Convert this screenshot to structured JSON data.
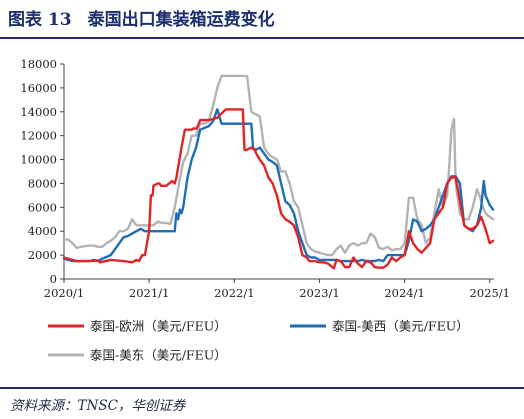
{
  "figure": {
    "label": "图表 13",
    "title": "泰国出口集装箱运费变化",
    "source": "资料来源：TNSC，华创证券"
  },
  "colors": {
    "europe": "#e02427",
    "uswest": "#1f6db5",
    "useast": "#b3b3b3",
    "brand": "#1a2f6b"
  },
  "chart_data": {
    "type": "line",
    "title": "",
    "xlabel": "",
    "ylabel": "",
    "ylim": [
      0,
      18000
    ],
    "yticks": [
      0,
      2000,
      4000,
      6000,
      8000,
      10000,
      12000,
      14000,
      16000,
      18000
    ],
    "xlim": [
      2020.0,
      2025.05
    ],
    "xticks": [
      {
        "value": 2020.0,
        "label": "2020/1"
      },
      {
        "value": 2021.0,
        "label": "2021/1"
      },
      {
        "value": 2022.0,
        "label": "2022/1"
      },
      {
        "value": 2023.0,
        "label": "2023/1"
      },
      {
        "value": 2024.0,
        "label": "2024/1"
      },
      {
        "value": 2025.0,
        "label": "2025/1"
      }
    ],
    "grid": false,
    "legend_position": "bottom",
    "series": [
      {
        "key": "europe",
        "name": "泰国-欧洲（美元/FEU）",
        "x": [
          2020.0,
          2020.15,
          2020.3,
          2020.4,
          2020.42,
          2020.55,
          2020.7,
          2020.8,
          2020.85,
          2020.88,
          2020.92,
          2020.95,
          2021.0,
          2021.02,
          2021.04,
          2021.05,
          2021.1,
          2021.12,
          2021.14,
          2021.2,
          2021.27,
          2021.3,
          2021.32,
          2021.38,
          2021.42,
          2021.44,
          2021.5,
          2021.52,
          2021.56,
          2021.6,
          2021.7,
          2021.8,
          2021.84,
          2021.9,
          2021.95,
          2022.0,
          2022.05,
          2022.1,
          2022.12,
          2022.14,
          2022.2,
          2022.24,
          2022.26,
          2022.3,
          2022.35,
          2022.4,
          2022.45,
          2022.5,
          2022.55,
          2022.6,
          2022.65,
          2022.7,
          2022.75,
          2022.8,
          2022.85,
          2022.88,
          2022.92,
          2022.95,
          2023.0,
          2023.05,
          2023.1,
          2023.15,
          2023.17,
          2023.2,
          2023.25,
          2023.3,
          2023.35,
          2023.4,
          2023.45,
          2023.5,
          2023.55,
          2023.6,
          2023.65,
          2023.7,
          2023.75,
          2023.8,
          2023.85,
          2023.9,
          2023.95,
          2024.0,
          2024.05,
          2024.1,
          2024.15,
          2024.2,
          2024.25,
          2024.3,
          2024.35,
          2024.4,
          2024.45,
          2024.5,
          2024.55,
          2024.6,
          2024.65,
          2024.7,
          2024.75,
          2024.8,
          2024.85,
          2024.9,
          2024.95,
          2025.0,
          2025.04
        ],
        "y": [
          1800,
          1500,
          1500,
          1550,
          1400,
          1600,
          1500,
          1400,
          1600,
          1500,
          2000,
          2000,
          4000,
          7000,
          7000,
          7800,
          8000,
          8000,
          7800,
          7800,
          8200,
          8000,
          8500,
          11000,
          12500,
          12500,
          12500,
          12600,
          12600,
          13300,
          13300,
          13500,
          13800,
          14200,
          14200,
          14200,
          14200,
          14200,
          10800,
          10800,
          11000,
          10800,
          10500,
          10000,
          9500,
          8500,
          8000,
          7000,
          5500,
          5000,
          4800,
          4500,
          3500,
          2000,
          1800,
          1500,
          1500,
          1500,
          1400,
          1400,
          1300,
          1000,
          900,
          1600,
          1500,
          1000,
          1000,
          1800,
          1300,
          1000,
          1500,
          1400,
          1000,
          950,
          950,
          1200,
          1800,
          1500,
          1800,
          2000,
          4000,
          3000,
          2500,
          2200,
          2600,
          3000,
          5000,
          5500,
          6000,
          8000,
          8500,
          8500,
          6500,
          4500,
          4200,
          4200,
          4500,
          5200,
          4200,
          3000,
          3200
        ],
        "color_key": "europe"
      },
      {
        "key": "uswest",
        "name": "泰国-美西（美元/FEU）",
        "x": [
          2020.0,
          2020.1,
          2020.2,
          2020.3,
          2020.35,
          2020.4,
          2020.45,
          2020.55,
          2020.6,
          2020.65,
          2020.7,
          2020.75,
          2020.8,
          2020.85,
          2020.9,
          2020.95,
          2021.0,
          2021.05,
          2021.1,
          2021.15,
          2021.2,
          2021.25,
          2021.3,
          2021.32,
          2021.34,
          2021.36,
          2021.38,
          2021.4,
          2021.45,
          2021.5,
          2021.55,
          2021.6,
          2021.7,
          2021.75,
          2021.8,
          2021.85,
          2021.9,
          2021.95,
          2022.0,
          2022.05,
          2022.1,
          2022.15,
          2022.2,
          2022.22,
          2022.25,
          2022.3,
          2022.35,
          2022.4,
          2022.45,
          2022.5,
          2022.55,
          2022.6,
          2022.65,
          2022.7,
          2022.75,
          2022.8,
          2022.85,
          2022.9,
          2022.95,
          2023.0,
          2023.05,
          2023.1,
          2023.15,
          2023.2,
          2023.25,
          2023.3,
          2023.35,
          2023.4,
          2023.45,
          2023.5,
          2023.55,
          2023.6,
          2023.65,
          2023.7,
          2023.75,
          2023.8,
          2023.85,
          2023.9,
          2023.95,
          2024.0,
          2024.05,
          2024.1,
          2024.15,
          2024.2,
          2024.25,
          2024.3,
          2024.35,
          2024.4,
          2024.45,
          2024.5,
          2024.55,
          2024.6,
          2024.65,
          2024.7,
          2024.75,
          2024.8,
          2024.85,
          2024.9,
          2024.93,
          2024.95,
          2025.0,
          2025.04
        ],
        "y": [
          1700,
          1500,
          1500,
          1500,
          1600,
          1500,
          1700,
          2000,
          2500,
          3000,
          3500,
          3600,
          3800,
          4000,
          4200,
          4000,
          4000,
          4000,
          4000,
          4000,
          4000,
          4000,
          4000,
          5500,
          5000,
          5800,
          5500,
          6000,
          8500,
          10000,
          11000,
          12500,
          12800,
          13200,
          14200,
          13000,
          13000,
          13000,
          13000,
          13000,
          13000,
          13000,
          13000,
          11000,
          10800,
          11000,
          10500,
          10000,
          9800,
          9500,
          8000,
          6500,
          6200,
          5500,
          4000,
          3000,
          2000,
          1800,
          1800,
          1600,
          1600,
          1600,
          1600,
          1600,
          1500,
          1500,
          1500,
          1500,
          1500,
          1600,
          1500,
          1500,
          1500,
          1600,
          1500,
          2000,
          2000,
          2000,
          2000,
          2000,
          3200,
          5000,
          4800,
          4000,
          4200,
          4500,
          5000,
          6000,
          7000,
          8000,
          8600,
          8600,
          8000,
          4500,
          4200,
          4000,
          4500,
          6000,
          8200,
          7000,
          6200,
          5800
        ],
        "color_key": "uswest"
      },
      {
        "key": "useast",
        "name": "泰国-美东（美元/FEU）",
        "x": [
          2020.0,
          2020.05,
          2020.1,
          2020.15,
          2020.2,
          2020.3,
          2020.35,
          2020.4,
          2020.45,
          2020.5,
          2020.55,
          2020.6,
          2020.65,
          2020.7,
          2020.75,
          2020.8,
          2020.85,
          2020.9,
          2020.95,
          2021.0,
          2021.05,
          2021.1,
          2021.15,
          2021.2,
          2021.25,
          2021.3,
          2021.35,
          2021.4,
          2021.45,
          2021.5,
          2021.55,
          2021.6,
          2021.65,
          2021.7,
          2021.75,
          2021.8,
          2021.85,
          2021.9,
          2021.95,
          2022.0,
          2022.05,
          2022.1,
          2022.15,
          2022.2,
          2022.25,
          2022.3,
          2022.35,
          2022.4,
          2022.45,
          2022.5,
          2022.55,
          2022.6,
          2022.65,
          2022.7,
          2022.75,
          2022.8,
          2022.85,
          2022.9,
          2022.95,
          2023.0,
          2023.05,
          2023.1,
          2023.15,
          2023.2,
          2023.25,
          2023.3,
          2023.35,
          2023.4,
          2023.45,
          2023.5,
          2023.55,
          2023.6,
          2023.65,
          2023.7,
          2023.75,
          2023.8,
          2023.85,
          2023.9,
          2023.95,
          2024.0,
          2024.05,
          2024.1,
          2024.15,
          2024.2,
          2024.25,
          2024.3,
          2024.35,
          2024.4,
          2024.45,
          2024.5,
          2024.52,
          2024.55,
          2024.58,
          2024.6,
          2024.62,
          2024.65,
          2024.7,
          2024.75,
          2024.8,
          2024.85,
          2024.88,
          2024.92,
          2024.95,
          2025.0,
          2025.04
        ],
        "y": [
          3300,
          3300,
          3000,
          2600,
          2700,
          2800,
          2800,
          2700,
          2700,
          3000,
          3200,
          3500,
          4000,
          4000,
          4200,
          5000,
          4500,
          4500,
          4500,
          4500,
          4500,
          4800,
          4700,
          4700,
          4600,
          6000,
          8000,
          9800,
          10500,
          12000,
          12000,
          13000,
          13000,
          13200,
          14500,
          16000,
          17000,
          17000,
          17000,
          17000,
          17000,
          17000,
          17000,
          14000,
          13800,
          13600,
          11000,
          10500,
          10200,
          10000,
          9000,
          9000,
          8000,
          6500,
          6000,
          4500,
          3000,
          2500,
          2300,
          2200,
          2100,
          2000,
          2000,
          2500,
          2800,
          2200,
          2800,
          3000,
          2800,
          3000,
          3000,
          3800,
          3500,
          2600,
          2500,
          2700,
          2400,
          2500,
          2500,
          3000,
          6800,
          6800,
          5000,
          4500,
          3000,
          3500,
          5500,
          7500,
          6000,
          7000,
          9000,
          12500,
          13400,
          8000,
          7000,
          5500,
          5000,
          5000,
          6000,
          7500,
          7000,
          6000,
          5500,
          5200,
          5000
        ],
        "color_key": "useast"
      }
    ]
  }
}
